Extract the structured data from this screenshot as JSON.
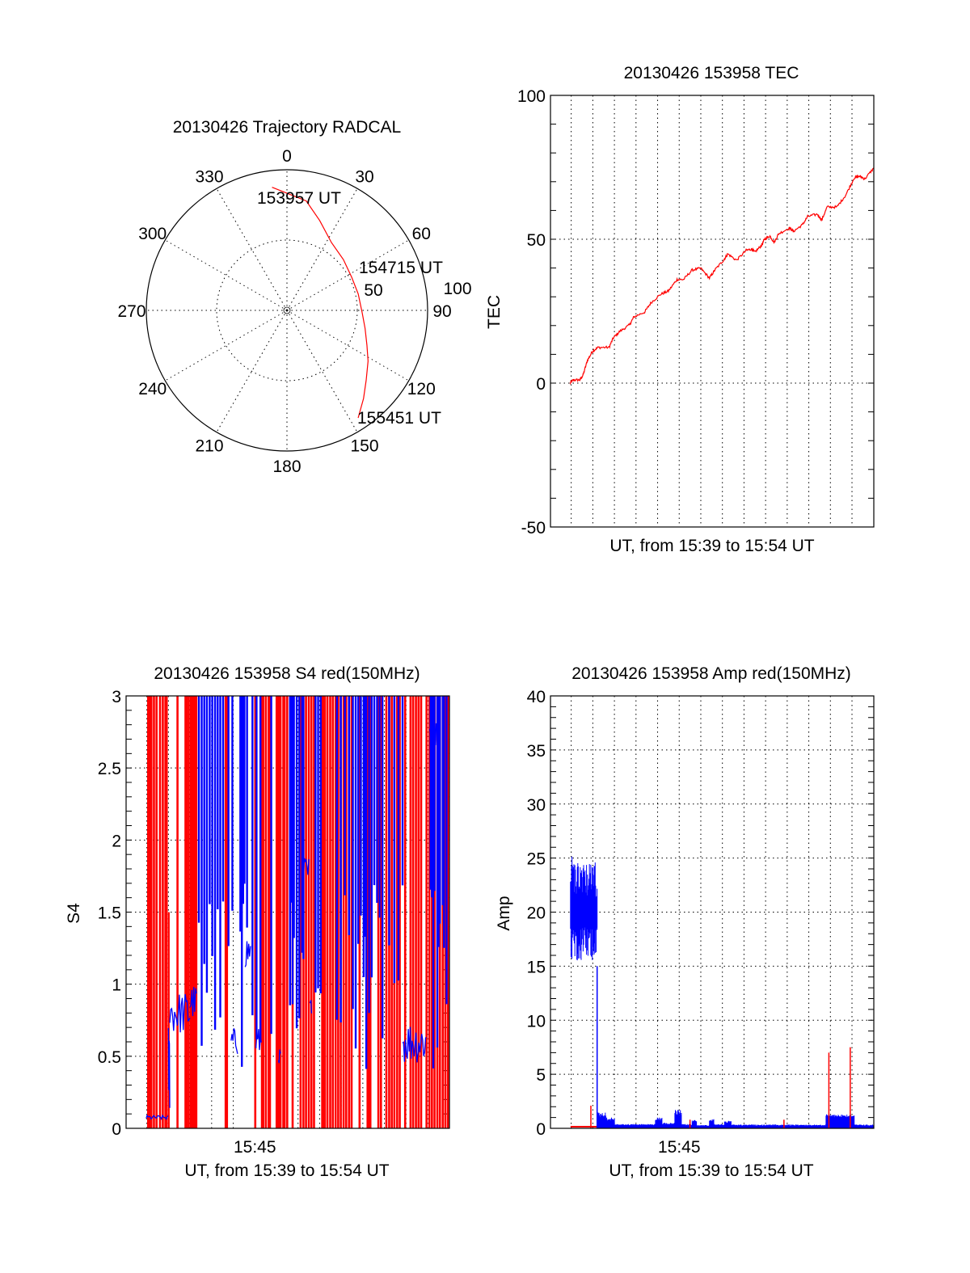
{
  "chart_data": [
    {
      "type": "polar",
      "title": "20130426 Trajectory RADCAL",
      "angle_labels": [
        "0",
        "30",
        "60",
        "90",
        "120",
        "150",
        "180",
        "210",
        "240",
        "270",
        "300",
        "330"
      ],
      "radial_labels": [
        "50",
        "100"
      ],
      "rlim": [
        0,
        100
      ],
      "grid": true,
      "series": [
        {
          "name": "trajectory",
          "color": "#ff0000",
          "azimuth_deg": [
            353.1,
            10,
            20,
            33.2,
            48,
            62.9,
            77,
            91.8,
            103,
            113.5,
            122,
            131.3,
            139,
            146.5
          ],
          "radius": [
            88.2,
            79,
            68,
            57.7,
            54,
            51.7,
            52,
            53.5,
            57,
            62,
            68,
            75,
            83,
            91.7
          ]
        }
      ],
      "annotations": [
        {
          "text": "153957 UT",
          "at": "start"
        },
        {
          "text": "154715 UT",
          "at": "middle"
        },
        {
          "text": "155451 UT",
          "at": "end"
        }
      ]
    },
    {
      "type": "line",
      "title": "20130426 153958 TEC",
      "xlabel": "UT, from 15:39 to 15:54 UT",
      "ylabel": "TEC",
      "xlim": [
        39.04,
        54.01
      ],
      "ylim": [
        -50,
        100
      ],
      "yticks": [
        -50,
        0,
        50,
        100
      ],
      "ytick_labels": [
        "-50",
        "0",
        "50",
        "100"
      ],
      "xgrid_minutes": [
        40,
        41,
        42,
        43,
        44,
        45,
        46,
        47,
        48,
        49,
        50,
        51,
        52,
        53
      ],
      "grid": true,
      "series": [
        {
          "name": "TEC",
          "color": "#ff0000",
          "x": [
            39.95,
            40.1,
            40.4,
            40.55,
            40.75,
            41.0,
            41.25,
            41.75,
            41.95,
            42.25,
            42.7,
            42.9,
            43.4,
            43.7,
            44.15,
            44.5,
            44.9,
            45.2,
            45.6,
            46.0,
            46.4,
            46.65,
            47.05,
            47.25,
            47.65,
            48.1,
            48.35,
            48.5,
            48.8,
            48.95,
            49.2,
            49.4,
            49.6,
            50.1,
            50.3,
            50.7,
            50.95,
            51.4,
            51.6,
            51.85,
            52.3,
            52.7,
            53.1,
            53.35,
            53.6,
            54.0
          ],
          "y": [
            0,
            1.1,
            1.1,
            2.8,
            7.9,
            11.2,
            12.4,
            12.4,
            15.7,
            18,
            20.2,
            23,
            24.7,
            28,
            30.9,
            32,
            36,
            36,
            39.3,
            39.9,
            36.5,
            39.3,
            42.7,
            44.9,
            42.7,
            46.1,
            46.6,
            45.5,
            47.8,
            50,
            51.1,
            48.9,
            51.9,
            53.9,
            52.8,
            55,
            57.9,
            58.7,
            56.7,
            61.2,
            61.2,
            65.2,
            71.3,
            71.9,
            71,
            74.7
          ]
        }
      ]
    },
    {
      "type": "line",
      "title": "20130426 153958 S4 red(150MHz)",
      "xlabel": "UT, from 15:39 to 15:54 UT",
      "ylabel": "S4",
      "xlim": [
        39.04,
        54.01
      ],
      "ylim": [
        0,
        3
      ],
      "yticks": [
        0,
        0.5,
        1,
        1.5,
        2,
        2.5,
        3
      ],
      "ytick_labels": [
        "0",
        "0.5",
        "1",
        "1.5",
        "2",
        "2.5",
        "3"
      ],
      "xticks": [
        45
      ],
      "xtick_labels": [
        "15:45"
      ],
      "xgrid_minutes": [
        40,
        41,
        42,
        43,
        44,
        45,
        46,
        47,
        48,
        49,
        50,
        51,
        52,
        53
      ],
      "grid": true,
      "series": [
        {
          "name": "red saturated",
          "color": "#ff0000",
          "spikes_to_max_x": [
            40.06,
            40.12,
            40.21,
            40.33,
            40.45,
            40.61,
            40.74,
            40.86,
            40.92,
            41.42,
            41.79,
            41.85,
            41.94,
            42.04,
            42.1,
            42.16,
            42.23,
            42.29,
            43.65,
            43.71,
            45.02,
            45.33,
            45.39,
            45.51,
            45.64,
            45.7,
            46.01,
            46.07,
            46.13,
            46.19,
            46.32,
            46.38,
            46.5,
            46.75,
            47.12,
            47.25,
            47.37,
            47.5,
            47.62,
            47.74,
            48.12,
            48.18,
            48.24,
            48.36,
            48.49,
            48.61,
            48.74,
            48.86,
            48.98,
            49.11,
            49.23,
            49.36,
            49.48,
            49.85,
            50.22,
            50.29,
            50.35,
            50.72,
            50.84,
            51.09,
            51.22,
            51.34,
            51.46,
            51.59,
            51.71,
            51.96,
            52.21,
            52.33,
            52.46,
            52.58,
            52.7,
            52.95,
            53.08,
            53.2,
            53.32,
            53.45,
            53.57,
            53.7,
            53.82,
            53.94
          ],
          "partial_spikes": [
            {
              "x": 41.02,
              "y": 1.5
            }
          ]
        },
        {
          "name": "blue",
          "color": "#0000ff",
          "spikes_to_max_x": [
            42.41,
            42.54,
            42.66,
            42.78,
            42.91,
            43.03,
            43.16,
            43.28,
            43.4,
            43.53,
            43.78,
            43.96,
            44.33,
            44.4,
            44.46,
            44.52,
            44.64,
            44.89,
            45.08,
            45.26,
            45.76,
            46.63,
            46.69,
            46.75,
            46.81,
            46.94,
            47.06,
            47.19,
            47.25,
            47.81,
            47.93,
            48.05,
            48.8,
            48.98,
            49.17,
            49.36,
            49.54,
            49.67,
            49.79,
            49.91,
            50.04,
            50.1,
            50.16,
            50.29,
            50.41,
            50.53,
            50.66,
            50.78,
            50.91,
            51.22,
            51.46,
            51.65,
            51.84,
            53.14,
            53.2,
            53.26,
            53.32,
            53.45,
            53.51,
            53.57,
            53.7,
            53.76,
            53.88
          ],
          "noisy_segments": [
            {
              "x0": 39.97,
              "x1": 40.99,
              "ymin": 0.06,
              "ymax": 0.09
            },
            {
              "x0": 41.0,
              "x1": 41.06,
              "ymin": 0.1,
              "ymax": 0.75
            },
            {
              "x0": 41.06,
              "x1": 42.0,
              "ymin": 0.65,
              "ymax": 0.95
            },
            {
              "x0": 42.0,
              "x1": 42.3,
              "ymin": 0.75,
              "ymax": 1.0
            },
            {
              "x0": 43.9,
              "x1": 44.2,
              "ymin": 0.5,
              "ymax": 0.7
            },
            {
              "x0": 44.55,
              "x1": 44.8,
              "ymin": 1.1,
              "ymax": 1.35
            },
            {
              "x0": 45.05,
              "x1": 45.3,
              "ymin": 0.5,
              "ymax": 0.7
            },
            {
              "x0": 46.1,
              "x1": 46.2,
              "ymin": 0.45,
              "ymax": 0.55
            },
            {
              "x0": 47.25,
              "x1": 47.5,
              "ymin": 1.6,
              "ymax": 1.9
            },
            {
              "x0": 47.55,
              "x1": 47.65,
              "ymin": 0.8,
              "ymax": 0.9
            },
            {
              "x0": 51.84,
              "x1": 52.95,
              "ymin": 0.45,
              "ymax": 0.75
            },
            {
              "x0": 53.1,
              "x1": 53.4,
              "ymin": 2.6,
              "ymax": 2.95
            }
          ]
        }
      ]
    },
    {
      "type": "line",
      "title": "20130426 153958 Amp red(150MHz)",
      "xlabel": "UT, from 15:39 to 15:54 UT",
      "ylabel": "Amp",
      "xlim": [
        39.04,
        54.01
      ],
      "ylim": [
        0,
        40
      ],
      "yticks": [
        0,
        5,
        10,
        15,
        20,
        25,
        30,
        35,
        40
      ],
      "ytick_labels": [
        "0",
        "5",
        "10",
        "15",
        "20",
        "25",
        "30",
        "35",
        "40"
      ],
      "xticks": [
        45
      ],
      "xtick_labels": [
        "15:45"
      ],
      "xgrid_minutes": [
        40,
        41,
        42,
        43,
        44,
        45,
        46,
        47,
        48,
        49,
        50,
        51,
        52,
        53
      ],
      "grid": true,
      "series": [
        {
          "name": "red",
          "color": "#ff0000",
          "baseline": {
            "x0": 39.97,
            "x1": 41.2,
            "y": 0.15
          },
          "spikes": [
            {
              "x": 40.91,
              "y": 2.1
            },
            {
              "x": 45.5,
              "y": 0.8
            },
            {
              "x": 49.85,
              "y": 0.8
            },
            {
              "x": 51.93,
              "y": 7.0
            },
            {
              "x": 52.92,
              "y": 7.5
            }
          ]
        },
        {
          "name": "blue",
          "color": "#0000ff",
          "noisy_segments": [
            {
              "x0": 39.97,
              "x1": 41.2,
              "ymin": 15.5,
              "ymax": 24.5,
              "peak": 26.5
            },
            {
              "x0": 41.2,
              "x1": 41.6,
              "ymin": 0.1,
              "ymax": 1.5
            },
            {
              "x0": 41.6,
              "x1": 42.0,
              "ymin": 0.1,
              "ymax": 1.0
            },
            {
              "x0": 42.0,
              "x1": 43.9,
              "ymin": 0.05,
              "ymax": 0.4
            },
            {
              "x0": 43.9,
              "x1": 44.2,
              "ymin": 0.1,
              "ymax": 1.0
            },
            {
              "x0": 44.2,
              "x1": 44.8,
              "ymin": 0.05,
              "ymax": 0.5
            },
            {
              "x0": 44.8,
              "x1": 45.1,
              "ymin": 0.2,
              "ymax": 1.7
            },
            {
              "x0": 45.1,
              "x1": 45.6,
              "ymin": 0.05,
              "ymax": 0.4
            },
            {
              "x0": 45.6,
              "x1": 45.8,
              "ymin": 0.1,
              "ymax": 0.8
            },
            {
              "x0": 45.8,
              "x1": 46.4,
              "ymin": 0.05,
              "ymax": 0.3
            },
            {
              "x0": 46.4,
              "x1": 46.6,
              "ymin": 0.1,
              "ymax": 0.9
            },
            {
              "x0": 46.6,
              "x1": 47.1,
              "ymin": 0.05,
              "ymax": 0.4
            },
            {
              "x0": 47.1,
              "x1": 47.4,
              "ymin": 0.1,
              "ymax": 0.7
            },
            {
              "x0": 47.4,
              "x1": 51.8,
              "ymin": 0.05,
              "ymax": 0.35
            },
            {
              "x0": 51.8,
              "x1": 53.1,
              "ymin": 0.5,
              "ymax": 1.3
            },
            {
              "x0": 53.1,
              "x1": 54.0,
              "ymin": 0.05,
              "ymax": 0.35
            }
          ]
        }
      ]
    }
  ]
}
